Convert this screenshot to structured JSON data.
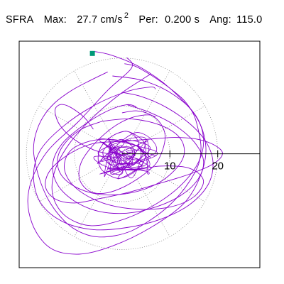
{
  "header": {
    "station": "SFRA",
    "max_label": "Max:",
    "max_value": "27.7 cm/s",
    "max_exp": "2",
    "per_label": "Per:",
    "per_value": "0.200 s",
    "ang_label": "Ang:",
    "ang_value": "115.0"
  },
  "colors": {
    "trace": "#8800cc",
    "marker": "#009977",
    "axes": "#000000",
    "rings": "#888888"
  },
  "chart_data": {
    "type": "line",
    "title": "SFRA  Max: 27.7 cm/s2  Per: 0.200 s  Ang: 115.0",
    "xlabel": "",
    "ylabel": "",
    "x_ticks": [
      "10",
      "20"
    ],
    "rings": [
      10,
      20
    ],
    "xlim": [
      -21.5,
      28.8
    ],
    "ylim": [
      -27.8,
      27.5
    ],
    "grid": "dotted circles",
    "series": [
      {
        "x": [
          0.5,
          2.5,
          4.5,
          7,
          10,
          13,
          15,
          16,
          16.5,
          16,
          14.5,
          12,
          9,
          5.5,
          2,
          -1.5,
          -5,
          -8,
          -11,
          -13.5,
          -15.5,
          -17,
          -18,
          -18.5,
          -18,
          -16.5,
          -14,
          -10.5,
          -6.5,
          -3
        ],
        "y": [
          22,
          21.5,
          20.3,
          18.5,
          16,
          13,
          9.5,
          5.5,
          1.5,
          -2.5,
          -6,
          -10,
          -13.5,
          -16.5,
          -18.8,
          -20,
          -20.3,
          -19.5,
          -17.5,
          -14.5,
          -11,
          -7,
          -3,
          1,
          5,
          9,
          12.5,
          15.5,
          18,
          20
        ]
      },
      {
        "x": [
          -6.2,
          -6,
          -2,
          4,
          10,
          15.5,
          17.5,
          16.5,
          13,
          6,
          -2,
          -9,
          -15,
          -18.8,
          -19.5,
          -16,
          -9,
          -3,
          2,
          1
        ],
        "y": [
          24.5,
          25,
          24,
          21,
          16,
          9,
          2,
          -5,
          -12,
          -18,
          -22.5,
          -24.5,
          -23,
          -17,
          -9,
          0,
          8,
          15.5,
          21,
          23.5
        ]
      },
      {
        "x": [
          0,
          4,
          9,
          14,
          17.5,
          19,
          18,
          14,
          8,
          1,
          -6,
          -12.5,
          -17,
          -18.5,
          -17,
          -12,
          -5.5,
          1,
          6,
          7
        ],
        "y": [
          15,
          14,
          11.5,
          7.5,
          3,
          -2,
          -7.5,
          -12.5,
          -16,
          -18,
          -18.5,
          -16.5,
          -12,
          -5.5,
          1,
          7,
          12,
          15.2,
          16.3,
          15.8
        ]
      },
      {
        "x": [
          0,
          5,
          11,
          16,
          19.5,
          21,
          19,
          14,
          7,
          1,
          -5,
          -10,
          -14,
          -16,
          -15,
          -11,
          -6,
          0
        ],
        "y": [
          3,
          3.5,
          4,
          3.5,
          2,
          0,
          -2.5,
          -5,
          -7.5,
          -9.5,
          -11,
          -12,
          -11,
          -8,
          -4,
          0,
          2.5,
          3
        ]
      },
      {
        "x": [
          0,
          3,
          6,
          8,
          9,
          8.5,
          7,
          4,
          0.5,
          -3,
          -6,
          -8,
          -9,
          -8.5,
          -6.5,
          -3.5,
          -0.5,
          2.5,
          5.5,
          7
        ],
        "y": [
          10,
          10.5,
          9.5,
          7.5,
          4.5,
          1,
          -2.5,
          -5.5,
          -8,
          -9.5,
          -9.5,
          -8,
          -5.5,
          -2,
          1.5,
          5,
          7.5,
          9,
          9.5,
          9
        ]
      },
      {
        "x": [
          -1,
          1,
          3,
          4.5,
          5,
          4.5,
          3,
          1,
          -1,
          -3,
          -4.5,
          -5,
          -4.5,
          -3,
          -1,
          1,
          2.5,
          3.5,
          3,
          1.5
        ],
        "y": [
          5,
          5.5,
          4.5,
          3,
          0.5,
          -2,
          -4,
          -5.5,
          -6,
          -5,
          -3.5,
          -1,
          1.5,
          3.5,
          5,
          5.5,
          4.5,
          2.5,
          0.5,
          -1
        ]
      },
      {
        "x": [
          0,
          2,
          3.5,
          4,
          3.5,
          2,
          0,
          -2,
          -3.5,
          -4,
          -3,
          -1.5,
          0,
          1.5,
          2.5,
          2.5,
          1.5,
          0,
          -1.5,
          -2.5,
          -2.5,
          -1.5,
          0
        ],
        "y": [
          3,
          2.5,
          1.5,
          0,
          -1.5,
          -3,
          -3.5,
          -3,
          -1.5,
          0.5,
          2,
          3,
          3.5,
          2.5,
          1,
          -0.5,
          -2,
          -2.5,
          -2,
          -1,
          0.5,
          1.5,
          2
        ]
      },
      {
        "x": [
          -2,
          4,
          10,
          15,
          17,
          16,
          12,
          6,
          -1,
          -7,
          -12,
          -14.5,
          -14,
          -11,
          -6,
          -0.5,
          4,
          6
        ],
        "y": [
          19,
          18,
          15,
          10,
          4,
          -2,
          -8,
          -13,
          -16.5,
          -17.5,
          -15,
          -10,
          -4,
          2.5,
          9,
          14.5,
          18,
          19.5
        ]
      },
      {
        "x": [
          1,
          6,
          11,
          15,
          17,
          16,
          12.5,
          7,
          1,
          -5,
          -10,
          -13.5,
          -14.5,
          -12.5,
          -8,
          -3,
          1,
          3
        ],
        "y": [
          12,
          10,
          7,
          3,
          -1.5,
          -6,
          -10,
          -13,
          -14.5,
          -14,
          -11.5,
          -7.5,
          -2.5,
          2.5,
          7,
          10.5,
          12,
          11.5
        ]
      },
      {
        "x": [
          3,
          8,
          14,
          17,
          15,
          10,
          3,
          -4,
          -9.5,
          -12,
          -11,
          -7,
          -2,
          3,
          6
        ],
        "y": [
          -4,
          -3,
          -3.5,
          -6.5,
          -10.5,
          -13,
          -13.5,
          -12,
          -8.5,
          -4,
          0.5,
          3,
          3.5,
          2,
          -1
        ]
      },
      {
        "x": [
          -4,
          2,
          8,
          12,
          13,
          11,
          7,
          2,
          -4,
          -9,
          -12.5,
          -13.5,
          -12,
          -8.5,
          -4
        ],
        "y": [
          8,
          8.5,
          7,
          4,
          0,
          -4,
          -7.5,
          -9.5,
          -10,
          -8.5,
          -5.5,
          -1.5,
          2.5,
          6,
          8
        ]
      },
      {
        "x": [
          -6,
          -8,
          -11,
          -13,
          -14,
          -13,
          -10,
          -6,
          -3
        ],
        "y": [
          6,
          9,
          11.5,
          12,
          10.5,
          7,
          3.5,
          1,
          0
        ]
      }
    ]
  }
}
